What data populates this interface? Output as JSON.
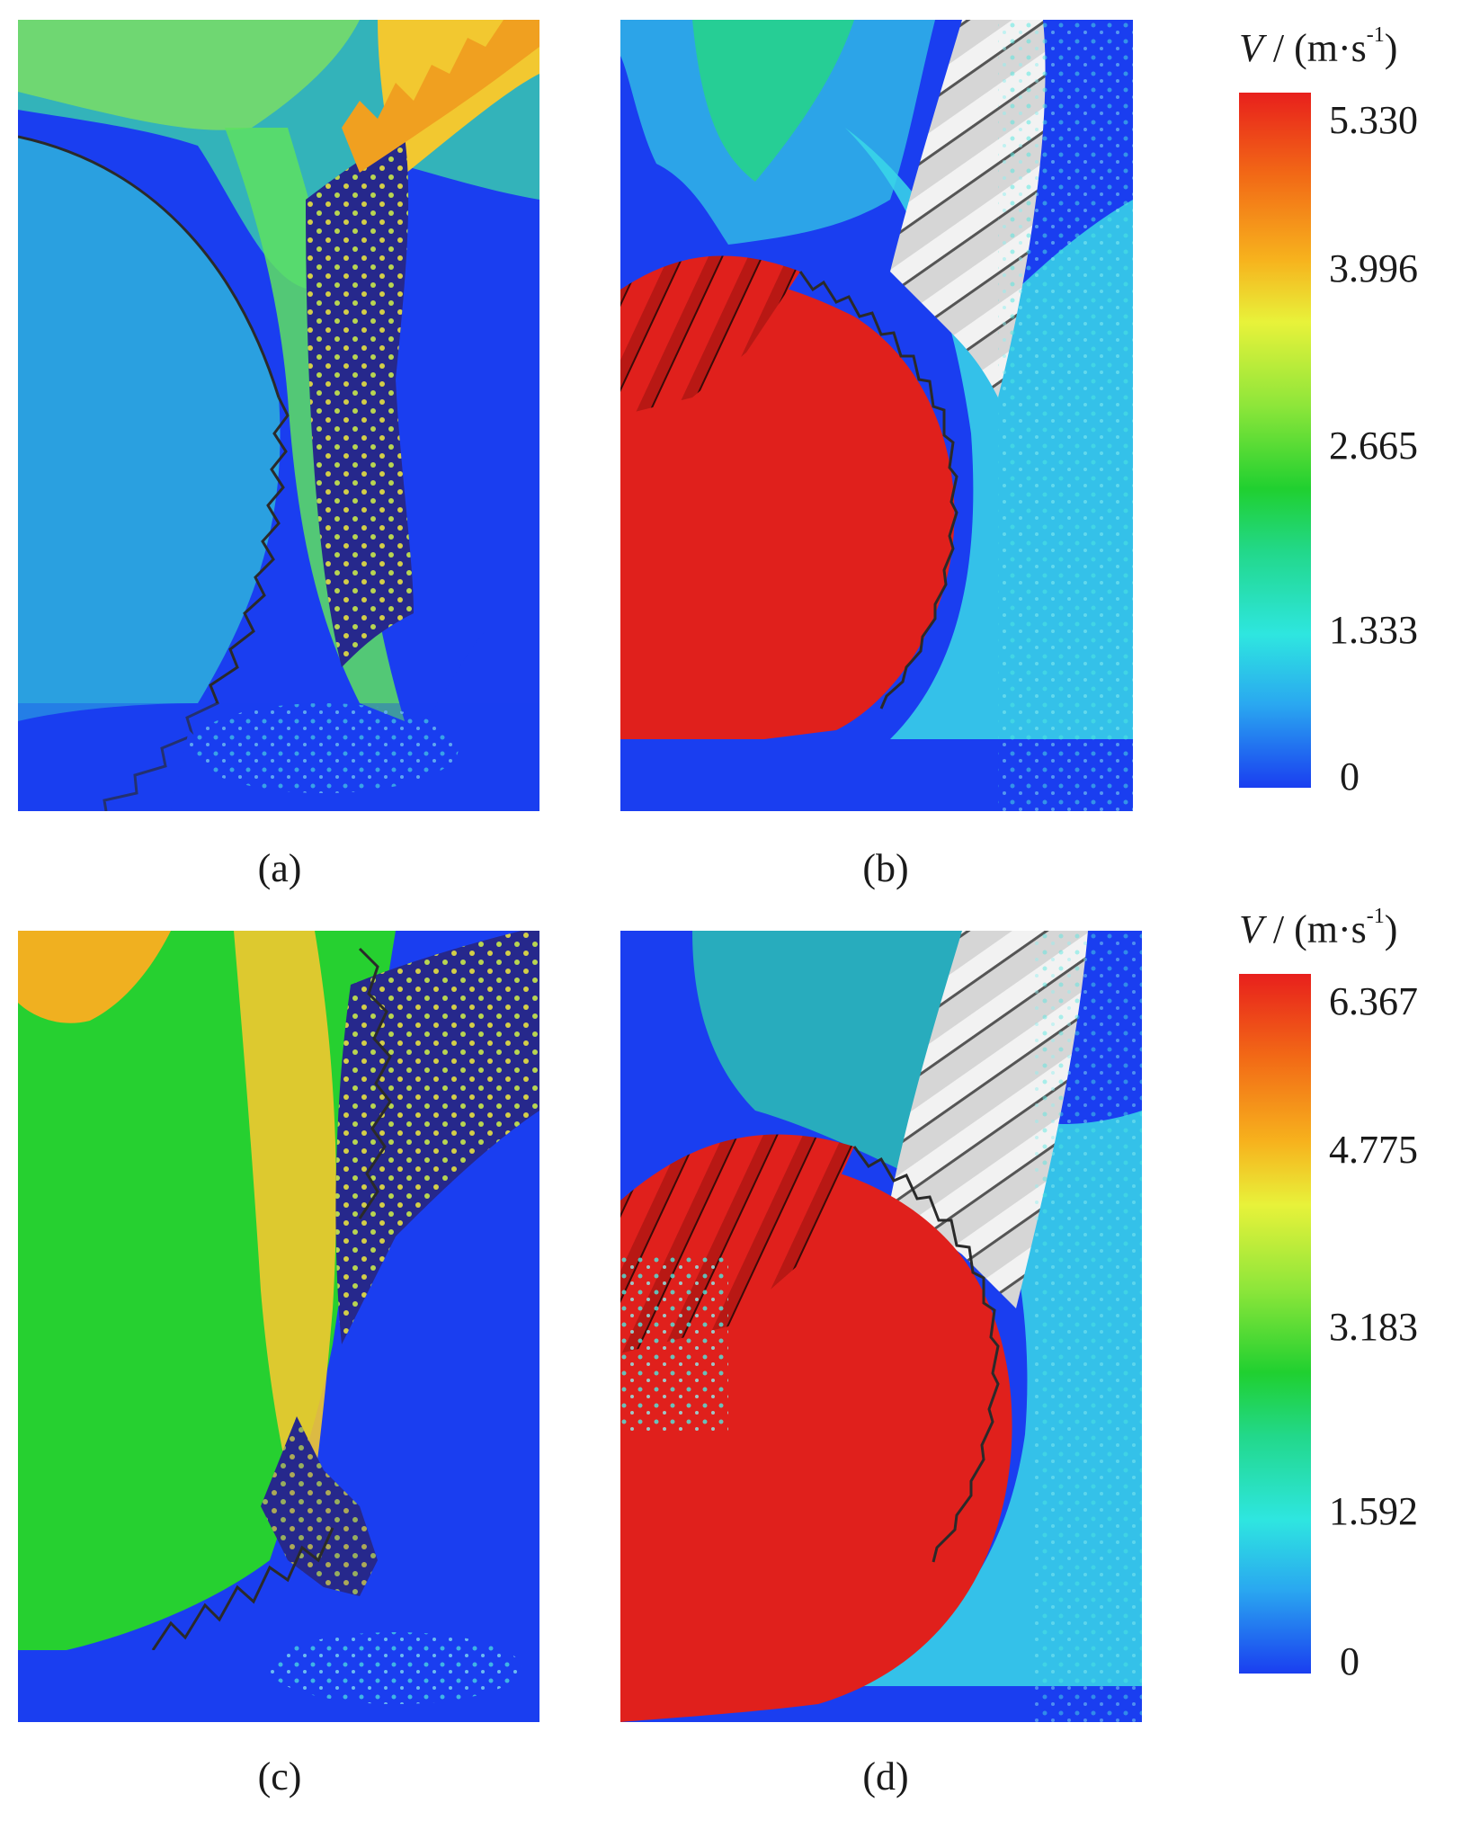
{
  "panels": {
    "a": {
      "caption": "(a)"
    },
    "b": {
      "caption": "(b)"
    },
    "c": {
      "caption": "(c)"
    },
    "d": {
      "caption": "(d)"
    }
  },
  "colorbar_top": {
    "symbol": "V",
    "unit": " / (m·s",
    "exponent": "-1",
    "close": ")",
    "ticks": [
      "5.330",
      "3.996",
      "2.665",
      "1.333",
      "0"
    ]
  },
  "colorbar_bottom": {
    "symbol": "V",
    "unit": " / (m·s",
    "exponent": "-1",
    "close": ")",
    "ticks": [
      "6.367",
      "4.775",
      "3.183",
      "1.592",
      "0"
    ]
  }
}
